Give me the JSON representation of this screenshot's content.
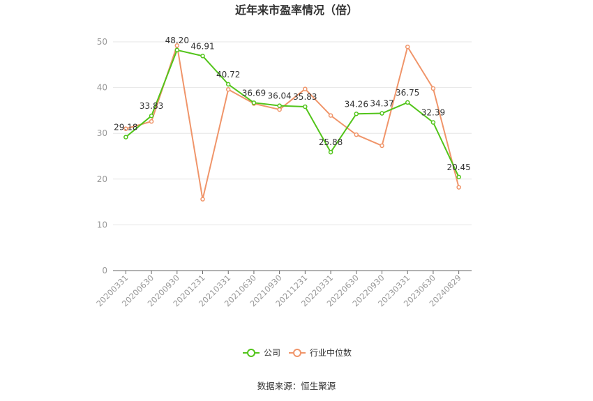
{
  "chart_data": {
    "type": "line",
    "title": "近年来市盈率情况（倍）",
    "categories": [
      "20200331",
      "20200630",
      "20200930",
      "20201231",
      "20210331",
      "20210630",
      "20210930",
      "20211231",
      "20220331",
      "20220630",
      "20220930",
      "20230331",
      "20230630",
      "20240829"
    ],
    "series": [
      {
        "name": "公司",
        "color": "#52c41a",
        "values": [
          29.18,
          33.83,
          48.2,
          46.91,
          40.72,
          36.69,
          36.04,
          35.83,
          25.88,
          34.26,
          34.37,
          36.75,
          32.39,
          20.45
        ],
        "labels": [
          "29.18",
          "33.83",
          "48.20",
          "46.91",
          "40.72",
          "36.69",
          "36.04",
          "35.83",
          "25.88",
          "34.26",
          "34.37",
          "36.75",
          "32.39",
          "20.45"
        ]
      },
      {
        "name": "行业中位数",
        "color": "#f0956a",
        "values": [
          31.0,
          32.6,
          49.2,
          15.6,
          39.6,
          36.5,
          35.2,
          39.7,
          33.9,
          29.7,
          27.3,
          48.9,
          39.8,
          18.2
        ]
      }
    ],
    "ylim": [
      0,
      50
    ],
    "yticks": [
      "0",
      "10",
      "20",
      "30",
      "40",
      "50"
    ],
    "grid": true,
    "legend_position": "bottom"
  },
  "source_text": "数据来源：恒生聚源"
}
